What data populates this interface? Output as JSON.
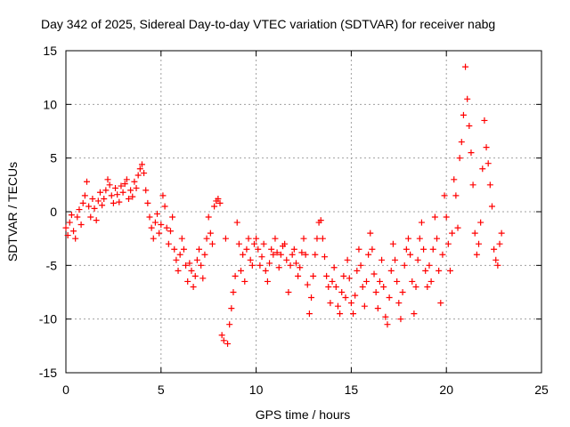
{
  "chart_data": {
    "type": "scatter",
    "title": "Day 342 of 2025, Sidereal Day-to-day VTEC variation (SDTVAR) for receiver nabg",
    "xlabel": "GPS time / hours",
    "ylabel": "SDTVAR / TECUs",
    "xlim": [
      0,
      25
    ],
    "ylim": [
      -15,
      15
    ],
    "xticks": [
      "0",
      "5",
      "10",
      "15",
      "20",
      "25"
    ],
    "yticks": [
      "15",
      "10",
      "5",
      "0",
      "-5",
      "-10",
      "-15"
    ],
    "grid": true,
    "marker": "+",
    "marker_color": "#ff0000",
    "series": [
      {
        "name": "SDTVAR",
        "points": [
          [
            0.0,
            -1.5
          ],
          [
            0.1,
            -2.2
          ],
          [
            0.2,
            -1.0
          ],
          [
            0.3,
            -0.3
          ],
          [
            0.4,
            -1.8
          ],
          [
            0.5,
            -2.5
          ],
          [
            0.6,
            -0.5
          ],
          [
            0.7,
            0.2
          ],
          [
            0.8,
            -1.2
          ],
          [
            0.9,
            0.8
          ],
          [
            1.0,
            1.5
          ],
          [
            1.1,
            2.8
          ],
          [
            1.2,
            0.5
          ],
          [
            1.3,
            -0.5
          ],
          [
            1.4,
            1.2
          ],
          [
            1.5,
            0.3
          ],
          [
            1.6,
            -0.8
          ],
          [
            1.7,
            1.0
          ],
          [
            1.8,
            1.8
          ],
          [
            1.9,
            0.6
          ],
          [
            2.0,
            1.2
          ],
          [
            2.1,
            2.0
          ],
          [
            2.2,
            3.0
          ],
          [
            2.3,
            2.5
          ],
          [
            2.4,
            1.5
          ],
          [
            2.5,
            0.8
          ],
          [
            2.6,
            2.2
          ],
          [
            2.7,
            1.6
          ],
          [
            2.8,
            0.9
          ],
          [
            2.9,
            2.4
          ],
          [
            3.0,
            1.8
          ],
          [
            3.1,
            2.6
          ],
          [
            3.2,
            3.0
          ],
          [
            3.3,
            1.2
          ],
          [
            3.4,
            2.0
          ],
          [
            3.5,
            1.4
          ],
          [
            3.6,
            2.8
          ],
          [
            3.7,
            2.2
          ],
          [
            3.8,
            3.4
          ],
          [
            3.9,
            4.0
          ],
          [
            4.0,
            4.4
          ],
          [
            4.1,
            3.6
          ],
          [
            4.2,
            2.0
          ],
          [
            4.3,
            0.8
          ],
          [
            4.4,
            -0.5
          ],
          [
            4.5,
            -1.5
          ],
          [
            4.6,
            -2.5
          ],
          [
            4.7,
            -1.0
          ],
          [
            4.8,
            -0.2
          ],
          [
            4.9,
            -2.0
          ],
          [
            5.0,
            -1.2
          ],
          [
            5.1,
            1.5
          ],
          [
            5.2,
            0.5
          ],
          [
            5.3,
            -1.5
          ],
          [
            5.4,
            -3.0
          ],
          [
            5.5,
            -1.8
          ],
          [
            5.6,
            -0.5
          ],
          [
            5.7,
            -3.5
          ],
          [
            5.8,
            -4.5
          ],
          [
            5.9,
            -5.5
          ],
          [
            6.0,
            -4.0
          ],
          [
            6.1,
            -2.5
          ],
          [
            6.2,
            -3.5
          ],
          [
            6.3,
            -5.0
          ],
          [
            6.4,
            -6.5
          ],
          [
            6.5,
            -4.8
          ],
          [
            6.6,
            -5.5
          ],
          [
            6.7,
            -7.0
          ],
          [
            6.8,
            -6.0
          ],
          [
            6.9,
            -4.5
          ],
          [
            7.0,
            -3.5
          ],
          [
            7.1,
            -5.0
          ],
          [
            7.2,
            -6.2
          ],
          [
            7.3,
            -4.0
          ],
          [
            7.4,
            -2.5
          ],
          [
            7.5,
            -0.5
          ],
          [
            7.6,
            -2.0
          ],
          [
            7.7,
            -3.0
          ],
          [
            7.8,
            0.5
          ],
          [
            7.9,
            1.0
          ],
          [
            8.0,
            1.2
          ],
          [
            8.1,
            0.8
          ],
          [
            8.2,
            -11.5
          ],
          [
            8.3,
            -12.0
          ],
          [
            8.4,
            -2.5
          ],
          [
            8.5,
            -12.3
          ],
          [
            8.6,
            -10.5
          ],
          [
            8.7,
            -9.0
          ],
          [
            8.8,
            -7.5
          ],
          [
            8.9,
            -6.0
          ],
          [
            9.0,
            -1.0
          ],
          [
            9.1,
            -3.0
          ],
          [
            9.2,
            -5.5
          ],
          [
            9.3,
            -4.0
          ],
          [
            9.4,
            -6.5
          ],
          [
            9.5,
            -3.5
          ],
          [
            9.6,
            -2.5
          ],
          [
            9.7,
            -4.5
          ],
          [
            9.8,
            -5.0
          ],
          [
            9.9,
            -3.0
          ],
          [
            10.0,
            -2.5
          ],
          [
            10.1,
            -3.5
          ],
          [
            10.2,
            -5.0
          ],
          [
            10.3,
            -4.2
          ],
          [
            10.4,
            -3.0
          ],
          [
            10.5,
            -5.5
          ],
          [
            10.6,
            -6.5
          ],
          [
            10.7,
            -4.8
          ],
          [
            10.8,
            -3.5
          ],
          [
            10.9,
            -4.0
          ],
          [
            11.0,
            -2.5
          ],
          [
            11.1,
            -3.8
          ],
          [
            11.2,
            -5.2
          ],
          [
            11.3,
            -4.0
          ],
          [
            11.4,
            -3.2
          ],
          [
            11.5,
            -3.0
          ],
          [
            11.6,
            -4.5
          ],
          [
            11.7,
            -7.5
          ],
          [
            11.8,
            -5.0
          ],
          [
            11.9,
            -4.0
          ],
          [
            12.0,
            -3.5
          ],
          [
            12.1,
            -4.8
          ],
          [
            12.2,
            -6.0
          ],
          [
            12.3,
            -5.2
          ],
          [
            12.4,
            -3.8
          ],
          [
            12.5,
            -2.5
          ],
          [
            12.6,
            -4.0
          ],
          [
            12.7,
            -6.8
          ],
          [
            12.8,
            -9.5
          ],
          [
            12.9,
            -8.0
          ],
          [
            13.0,
            -6.0
          ],
          [
            13.1,
            -4.0
          ],
          [
            13.2,
            -2.5
          ],
          [
            13.3,
            -1.0
          ],
          [
            13.4,
            -0.8
          ],
          [
            13.5,
            -2.5
          ],
          [
            13.6,
            -4.2
          ],
          [
            13.7,
            -6.0
          ],
          [
            13.8,
            -7.0
          ],
          [
            13.9,
            -8.5
          ],
          [
            14.0,
            -6.5
          ],
          [
            14.1,
            -5.2
          ],
          [
            14.2,
            -7.0
          ],
          [
            14.3,
            -8.8
          ],
          [
            14.4,
            -9.5
          ],
          [
            14.5,
            -7.5
          ],
          [
            14.6,
            -6.0
          ],
          [
            14.7,
            -8.0
          ],
          [
            14.8,
            -4.5
          ],
          [
            14.9,
            -6.2
          ],
          [
            15.0,
            -8.5
          ],
          [
            15.1,
            -9.5
          ],
          [
            15.2,
            -7.8
          ],
          [
            15.3,
            -5.5
          ],
          [
            15.4,
            -3.5
          ],
          [
            15.5,
            -5.0
          ],
          [
            15.6,
            -7.0
          ],
          [
            15.7,
            -8.8
          ],
          [
            15.8,
            -6.5
          ],
          [
            15.9,
            -4.0
          ],
          [
            16.0,
            -2.0
          ],
          [
            16.1,
            -3.5
          ],
          [
            16.2,
            -5.8
          ],
          [
            16.3,
            -7.5
          ],
          [
            16.4,
            -9.0
          ],
          [
            16.5,
            -6.5
          ],
          [
            16.6,
            -4.5
          ],
          [
            16.7,
            -7.0
          ],
          [
            16.8,
            -9.8
          ],
          [
            16.9,
            -10.5
          ],
          [
            17.0,
            -8.0
          ],
          [
            17.1,
            -5.5
          ],
          [
            17.2,
            -3.0
          ],
          [
            17.3,
            -4.5
          ],
          [
            17.4,
            -6.5
          ],
          [
            17.5,
            -8.5
          ],
          [
            17.6,
            -10.0
          ],
          [
            17.7,
            -7.5
          ],
          [
            17.8,
            -5.0
          ],
          [
            17.9,
            -3.5
          ],
          [
            18.0,
            -2.5
          ],
          [
            18.1,
            -4.0
          ],
          [
            18.2,
            -6.5
          ],
          [
            18.3,
            -9.5
          ],
          [
            18.4,
            -7.0
          ],
          [
            18.5,
            -4.5
          ],
          [
            18.6,
            -2.5
          ],
          [
            18.7,
            -1.0
          ],
          [
            18.8,
            -3.5
          ],
          [
            18.9,
            -5.5
          ],
          [
            19.0,
            -7.0
          ],
          [
            19.1,
            -5.0
          ],
          [
            19.2,
            -6.5
          ],
          [
            19.3,
            -3.5
          ],
          [
            19.4,
            -0.5
          ],
          [
            19.5,
            -2.5
          ],
          [
            19.6,
            -5.5
          ],
          [
            19.7,
            -8.5
          ],
          [
            19.8,
            -4.0
          ],
          [
            19.9,
            1.5
          ],
          [
            20.0,
            -0.5
          ],
          [
            20.1,
            -3.0
          ],
          [
            20.2,
            -5.5
          ],
          [
            20.3,
            -2.0
          ],
          [
            20.4,
            3.0
          ],
          [
            20.5,
            1.5
          ],
          [
            20.6,
            -1.5
          ],
          [
            20.7,
            5.0
          ],
          [
            20.8,
            6.5
          ],
          [
            20.9,
            9.0
          ],
          [
            21.0,
            13.5
          ],
          [
            21.1,
            10.5
          ],
          [
            21.2,
            8.0
          ],
          [
            21.3,
            5.5
          ],
          [
            21.4,
            2.5
          ],
          [
            21.5,
            -2.0
          ],
          [
            21.6,
            -4.0
          ],
          [
            21.7,
            -3.0
          ],
          [
            21.8,
            -1.0
          ],
          [
            21.9,
            4.0
          ],
          [
            22.0,
            8.5
          ],
          [
            22.1,
            6.0
          ],
          [
            22.2,
            4.5
          ],
          [
            22.3,
            2.5
          ],
          [
            22.4,
            0.5
          ],
          [
            22.5,
            -3.5
          ],
          [
            22.6,
            -4.5
          ],
          [
            22.7,
            -5.0
          ],
          [
            22.8,
            -3.0
          ],
          [
            22.9,
            -2.0
          ]
        ]
      }
    ]
  }
}
